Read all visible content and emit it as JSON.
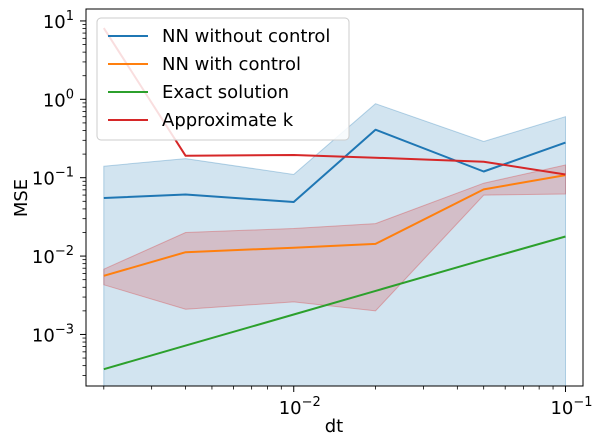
{
  "chart_data": {
    "type": "line",
    "xlabel": "dt",
    "ylabel": "MSE",
    "xscale": "log",
    "yscale": "log",
    "xlim": [
      0.00172,
      0.116
    ],
    "ylim": [
      0.00022,
      14.2
    ],
    "grid": false,
    "legend_position": "top-left",
    "x_ticks": [
      {
        "value": 0.01,
        "base": "10",
        "exp": "−2"
      },
      {
        "value": 0.1,
        "base": "10",
        "exp": "−1"
      }
    ],
    "y_ticks": [
      {
        "value": 0.001,
        "base": "10",
        "exp": "−3"
      },
      {
        "value": 0.01,
        "base": "10",
        "exp": "−2"
      },
      {
        "value": 0.1,
        "base": "10",
        "exp": "−1"
      },
      {
        "value": 1,
        "base": "10",
        "exp": "0"
      },
      {
        "value": 10,
        "base": "10",
        "exp": "1"
      }
    ],
    "x": [
      0.002,
      0.004,
      0.01,
      0.02,
      0.05,
      0.1
    ],
    "series": [
      {
        "name": "NN without control",
        "color": "#1f77b4",
        "values": [
          0.055,
          0.061,
          0.049,
          0.41,
          0.12,
          0.28
        ],
        "band": {
          "color": "#1f77b4",
          "lower": [
            0.00022,
            0.00022,
            0.00022,
            0.00022,
            0.00022,
            0.00022
          ],
          "upper": [
            0.14,
            0.175,
            0.11,
            0.88,
            0.29,
            0.6
          ]
        }
      },
      {
        "name": "NN with control",
        "color": "#ff7f0e",
        "values": [
          0.0056,
          0.0112,
          0.0128,
          0.0143,
          0.071,
          0.108
        ],
        "band": {
          "color": "#d62728",
          "lower": [
            0.0043,
            0.0021,
            0.0026,
            0.002,
            0.06,
            0.062
          ],
          "upper": [
            0.0068,
            0.02,
            0.0225,
            0.026,
            0.085,
            0.145
          ]
        }
      },
      {
        "name": "Exact solution",
        "color": "#2ca02c",
        "values": [
          0.00036,
          0.00072,
          0.0018,
          0.0036,
          0.009,
          0.0178
        ],
        "band": null
      },
      {
        "name": "Approximate k",
        "color": "#d62728",
        "values": [
          8.1,
          0.19,
          0.195,
          0.18,
          0.16,
          0.11
        ],
        "band": null
      }
    ]
  }
}
